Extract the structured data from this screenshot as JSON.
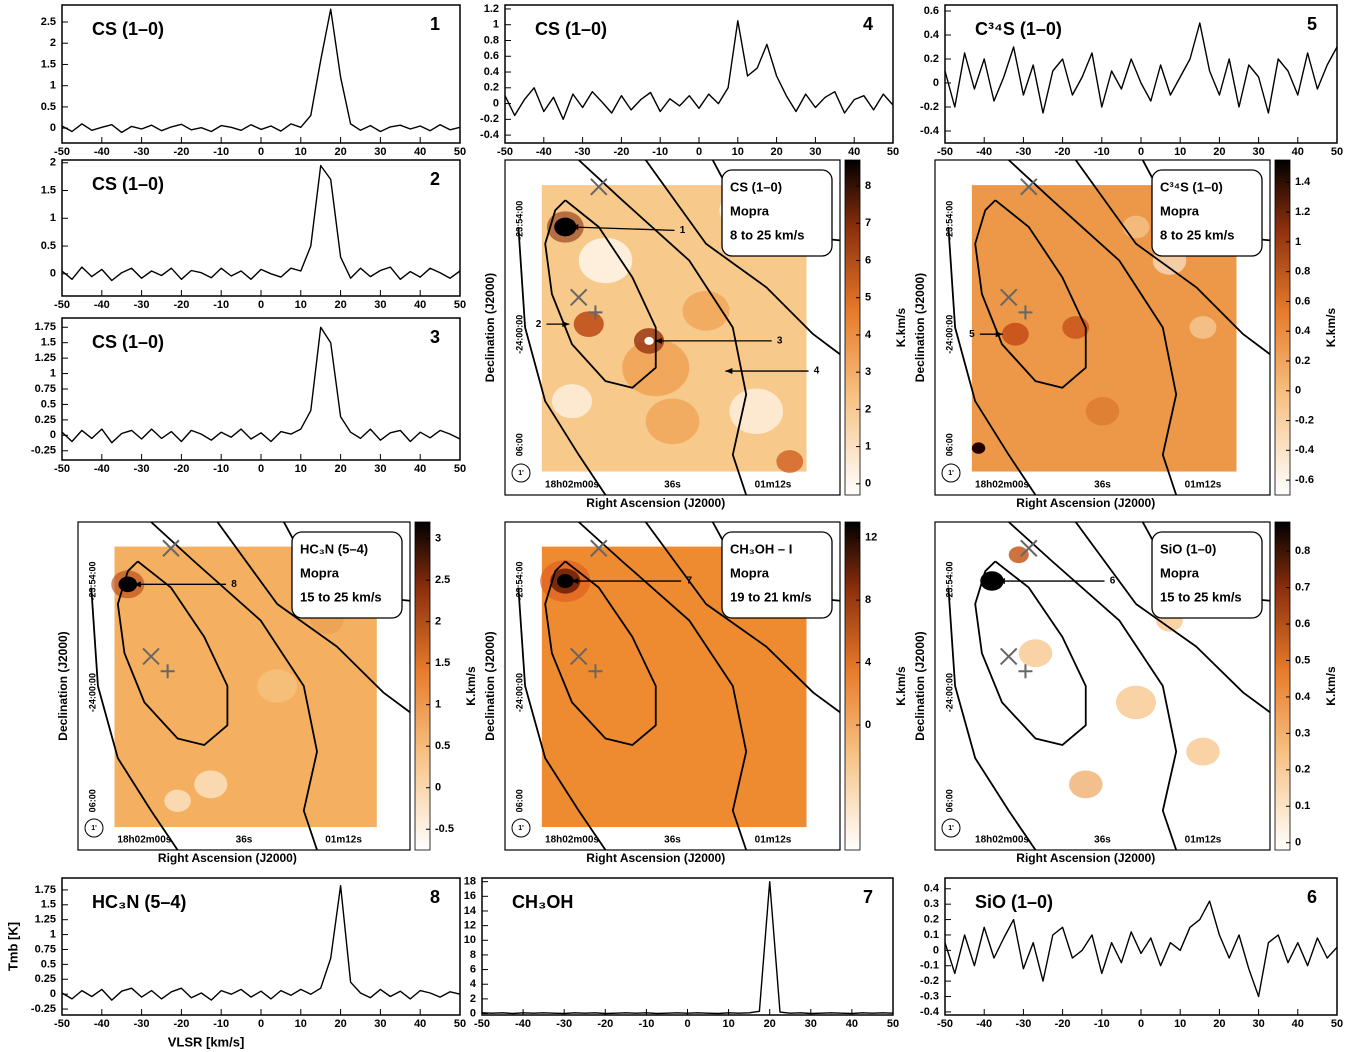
{
  "chart_data": [
    {
      "type": "line",
      "title": "CS (1–0)",
      "label": "1",
      "x": [
        -50,
        -47.5,
        -45,
        -42.5,
        -40,
        -37.5,
        -35,
        -32.5,
        -30,
        -27.5,
        -25,
        -22.5,
        -20,
        -17.5,
        -15,
        -12.5,
        -10,
        -7.5,
        -5,
        -2.5,
        0,
        2.5,
        5,
        7.5,
        10,
        12.5,
        15,
        17.5,
        20,
        22.5,
        25,
        27.5,
        30,
        32.5,
        35,
        37.5,
        40,
        42.5,
        45,
        47.5,
        50
      ],
      "values": [
        0.05,
        -0.08,
        0.1,
        -0.05,
        0.02,
        0.08,
        -0.1,
        0.04,
        -0.02,
        0.07,
        -0.06,
        0.03,
        0.09,
        -0.04,
        0.01,
        -0.08,
        0.06,
        0.02,
        -0.05,
        0.08,
        -0.03,
        0.05,
        -0.07,
        0.1,
        0.02,
        0.3,
        1.6,
        2.8,
        1.2,
        0.1,
        -0.05,
        0.06,
        -0.08,
        0.03,
        0.07,
        -0.02,
        0.05,
        -0.06,
        0.08,
        -0.04,
        0.02
      ],
      "color": "#000000",
      "xlim": [
        -50,
        50
      ],
      "xticks": [
        -50,
        -40,
        -30,
        -20,
        -10,
        0,
        10,
        20,
        30,
        40,
        50
      ],
      "ylim": [
        -0.35,
        2.9
      ],
      "yticks": [
        0,
        0.5,
        1,
        1.5,
        2,
        2.5
      ]
    },
    {
      "type": "line",
      "title": "CS (1–0)",
      "label": "4",
      "x": [
        -50,
        -47.5,
        -45,
        -42.5,
        -40,
        -37.5,
        -35,
        -32.5,
        -30,
        -27.5,
        -25,
        -22.5,
        -20,
        -17.5,
        -15,
        -12.5,
        -10,
        -7.5,
        -5,
        -2.5,
        0,
        2.5,
        5,
        7.5,
        10,
        12.5,
        15,
        17.5,
        20,
        22.5,
        25,
        27.5,
        30,
        32.5,
        35,
        37.5,
        40,
        42.5,
        45,
        47.5,
        50
      ],
      "values": [
        0.1,
        -0.15,
        0.05,
        0.2,
        -0.1,
        0.08,
        -0.2,
        0.12,
        -0.05,
        0.15,
        0.02,
        -0.12,
        0.1,
        -0.08,
        0.05,
        0.14,
        -0.1,
        0.06,
        -0.03,
        0.1,
        -0.06,
        0.12,
        0.0,
        0.2,
        1.05,
        0.35,
        0.45,
        0.75,
        0.35,
        0.1,
        -0.1,
        0.12,
        -0.05,
        0.08,
        0.15,
        -0.12,
        0.05,
        0.1,
        -0.08,
        0.12,
        -0.02
      ],
      "color": "#000000",
      "xlim": [
        -50,
        50
      ],
      "xticks": [
        -50,
        -40,
        -30,
        -20,
        -10,
        0,
        10,
        20,
        30,
        40,
        50
      ],
      "ylim": [
        -0.5,
        1.25
      ],
      "yticks": [
        -0.4,
        -0.2,
        0,
        0.2,
        0.4,
        0.6,
        0.8,
        1,
        1.2
      ]
    },
    {
      "type": "line",
      "title": "C³⁴S (1–0)",
      "label": "5",
      "x": [
        -50,
        -47.5,
        -45,
        -42.5,
        -40,
        -37.5,
        -35,
        -32.5,
        -30,
        -27.5,
        -25,
        -22.5,
        -20,
        -17.5,
        -15,
        -12.5,
        -10,
        -7.5,
        -5,
        -2.5,
        0,
        2.5,
        5,
        7.5,
        10,
        12.5,
        15,
        17.5,
        20,
        22.5,
        25,
        27.5,
        30,
        32.5,
        35,
        37.5,
        40,
        42.5,
        45,
        47.5,
        50
      ],
      "values": [
        0.1,
        -0.2,
        0.25,
        -0.05,
        0.2,
        -0.15,
        0.05,
        0.3,
        -0.1,
        0.15,
        -0.25,
        0.1,
        0.2,
        -0.1,
        0.05,
        0.25,
        -0.2,
        0.1,
        -0.05,
        0.2,
        0.0,
        -0.15,
        0.15,
        -0.1,
        0.05,
        0.2,
        0.5,
        0.1,
        -0.1,
        0.2,
        -0.2,
        0.15,
        0.05,
        -0.25,
        0.2,
        0.1,
        -0.1,
        0.25,
        -0.05,
        0.15,
        0.3
      ],
      "color": "#000000",
      "xlim": [
        -50,
        50
      ],
      "xticks": [
        -50,
        -40,
        -30,
        -20,
        -10,
        0,
        10,
        20,
        30,
        40,
        50
      ],
      "ylim": [
        -0.5,
        0.65
      ],
      "yticks": [
        -0.4,
        -0.2,
        0,
        0.2,
        0.4,
        0.6
      ]
    },
    {
      "type": "line",
      "title": "CS (1–0)",
      "label": "2",
      "x": [
        -50,
        -47.5,
        -45,
        -42.5,
        -40,
        -37.5,
        -35,
        -32.5,
        -30,
        -27.5,
        -25,
        -22.5,
        -20,
        -17.5,
        -15,
        -12.5,
        -10,
        -7.5,
        -5,
        -2.5,
        0,
        2.5,
        5,
        7.5,
        10,
        12.5,
        15,
        17.5,
        20,
        22.5,
        25,
        27.5,
        30,
        32.5,
        35,
        37.5,
        40,
        42.5,
        45,
        47.5,
        50
      ],
      "values": [
        0.05,
        -0.1,
        0.12,
        -0.05,
        0.08,
        -0.12,
        0.02,
        0.1,
        -0.08,
        0.05,
        -0.03,
        0.1,
        -0.1,
        0.06,
        0.02,
        -0.07,
        0.1,
        -0.04,
        0.05,
        -0.1,
        0.08,
        0.0,
        -0.06,
        0.1,
        0.05,
        0.5,
        1.95,
        1.7,
        0.3,
        -0.08,
        0.1,
        -0.05,
        0.06,
        0.12,
        -0.1,
        0.04,
        -0.06,
        0.1,
        0.02,
        -0.08,
        0.05
      ],
      "color": "#000000",
      "xlim": [
        -50,
        50
      ],
      "xticks": [
        -50,
        -40,
        -30,
        -20,
        -10,
        0,
        10,
        20,
        30,
        40,
        50
      ],
      "ylim": [
        -0.4,
        2.05
      ],
      "yticks": [
        0,
        0.5,
        1,
        1.5,
        2
      ]
    },
    {
      "type": "line",
      "title": "CS (1–0)",
      "label": "3",
      "x": [
        -50,
        -47.5,
        -45,
        -42.5,
        -40,
        -37.5,
        -35,
        -32.5,
        -30,
        -27.5,
        -25,
        -22.5,
        -20,
        -17.5,
        -15,
        -12.5,
        -10,
        -7.5,
        -5,
        -2.5,
        0,
        2.5,
        5,
        7.5,
        10,
        12.5,
        15,
        17.5,
        20,
        22.5,
        25,
        27.5,
        30,
        32.5,
        35,
        37.5,
        40,
        42.5,
        45,
        47.5,
        50
      ],
      "values": [
        0.05,
        -0.1,
        0.08,
        -0.05,
        0.1,
        -0.12,
        0.03,
        0.08,
        -0.06,
        0.1,
        -0.05,
        0.06,
        -0.1,
        0.08,
        0.02,
        -0.08,
        0.05,
        -0.03,
        0.1,
        -0.06,
        0.04,
        -0.1,
        0.06,
        0.02,
        0.1,
        0.4,
        1.75,
        1.5,
        0.3,
        0.05,
        -0.05,
        0.1,
        -0.08,
        0.04,
        0.08,
        -0.1,
        0.05,
        -0.04,
        0.08,
        0.02,
        -0.06
      ],
      "color": "#000000",
      "xlim": [
        -50,
        50
      ],
      "xticks": [
        -50,
        -40,
        -30,
        -20,
        -10,
        0,
        10,
        20,
        30,
        40,
        50
      ],
      "ylim": [
        -0.4,
        1.9
      ],
      "yticks": [
        -0.25,
        0,
        0.25,
        0.5,
        0.75,
        1,
        1.25,
        1.5,
        1.75
      ]
    },
    {
      "type": "line",
      "title": "HC₃N (5–4)",
      "label": "8",
      "xlabel": "VLSR [km/s]",
      "ylabel": "Tmb [K]",
      "x": [
        -50,
        -47.5,
        -45,
        -42.5,
        -40,
        -37.5,
        -35,
        -32.5,
        -30,
        -27.5,
        -25,
        -22.5,
        -20,
        -17.5,
        -15,
        -12.5,
        -10,
        -7.5,
        -5,
        -2.5,
        0,
        2.5,
        5,
        7.5,
        10,
        12.5,
        15,
        17.5,
        20,
        22.5,
        25,
        27.5,
        30,
        32.5,
        35,
        37.5,
        40,
        42.5,
        45,
        47.5,
        50
      ],
      "values": [
        0.02,
        -0.08,
        0.06,
        -0.04,
        0.08,
        -0.1,
        0.05,
        0.1,
        -0.05,
        0.06,
        -0.08,
        0.04,
        0.1,
        -0.06,
        0.02,
        -0.1,
        0.06,
        0.0,
        0.08,
        -0.05,
        0.05,
        -0.08,
        0.06,
        -0.02,
        0.08,
        0.0,
        0.1,
        0.6,
        1.82,
        0.2,
        0.02,
        -0.06,
        0.08,
        -0.04,
        0.05,
        -0.08,
        0.06,
        0.02,
        -0.05,
        0.04,
        0.0
      ],
      "color": "#000000",
      "xlim": [
        -50,
        50
      ],
      "xticks": [
        -50,
        -40,
        -30,
        -20,
        -10,
        0,
        10,
        20,
        30,
        40,
        50
      ],
      "ylim": [
        -0.35,
        1.95
      ],
      "yticks": [
        -0.25,
        0,
        0.25,
        0.5,
        0.75,
        1,
        1.25,
        1.5,
        1.75
      ]
    },
    {
      "type": "line",
      "title": "CH₃OH",
      "label": "7",
      "x": [
        -50,
        -47.5,
        -45,
        -42.5,
        -40,
        -37.5,
        -35,
        -32.5,
        -30,
        -27.5,
        -25,
        -22.5,
        -20,
        -17.5,
        -15,
        -12.5,
        -10,
        -7.5,
        -5,
        -2.5,
        0,
        2.5,
        5,
        7.5,
        10,
        12.5,
        15,
        17.5,
        20,
        22.5,
        25,
        27.5,
        30,
        32.5,
        35,
        37.5,
        40,
        42.5,
        45,
        47.5,
        50
      ],
      "values": [
        0.1,
        0.05,
        0.1,
        0.0,
        0.1,
        0.05,
        0.1,
        0.05,
        0.0,
        0.1,
        0.05,
        0.1,
        0.0,
        0.05,
        0.1,
        0.05,
        0.1,
        0.0,
        0.05,
        0.1,
        0.05,
        0.1,
        0.05,
        0.0,
        0.1,
        0.05,
        0.1,
        0.3,
        18.0,
        0.2,
        0.05,
        0.1,
        0.0,
        0.05,
        0.1,
        0.05,
        0.0,
        0.1,
        0.05,
        0.1,
        0.05
      ],
      "color": "#000000",
      "xlim": [
        -50,
        50
      ],
      "xticks": [
        -50,
        -40,
        -30,
        -20,
        -10,
        0,
        10,
        20,
        30,
        40,
        50
      ],
      "ylim": [
        -0.2,
        18.5
      ],
      "yticks": [
        0,
        2,
        4,
        6,
        8,
        10,
        12,
        14,
        16,
        18
      ]
    },
    {
      "type": "line",
      "title": "SiO (1–0)",
      "label": "6",
      "x": [
        -50,
        -47.5,
        -45,
        -42.5,
        -40,
        -37.5,
        -35,
        -32.5,
        -30,
        -27.5,
        -25,
        -22.5,
        -20,
        -17.5,
        -15,
        -12.5,
        -10,
        -7.5,
        -5,
        -2.5,
        0,
        2.5,
        5,
        7.5,
        10,
        12.5,
        15,
        17.5,
        20,
        22.5,
        25,
        27.5,
        30,
        32.5,
        35,
        37.5,
        40,
        42.5,
        45,
        47.5,
        50
      ],
      "values": [
        0.05,
        -0.15,
        0.1,
        -0.1,
        0.15,
        -0.05,
        0.08,
        0.2,
        -0.12,
        0.05,
        -0.2,
        0.1,
        0.15,
        -0.05,
        0.0,
        0.1,
        -0.15,
        0.05,
        -0.08,
        0.12,
        -0.02,
        0.08,
        -0.1,
        0.05,
        0.0,
        0.15,
        0.2,
        0.32,
        0.1,
        -0.05,
        0.1,
        -0.12,
        -0.3,
        0.05,
        0.1,
        -0.08,
        0.05,
        -0.1,
        0.08,
        -0.05,
        0.02
      ],
      "color": "#000000",
      "xlim": [
        -50,
        50
      ],
      "xticks": [
        -50,
        -40,
        -30,
        -20,
        -10,
        0,
        10,
        20,
        30,
        40,
        50
      ],
      "ylim": [
        -0.42,
        0.47
      ],
      "yticks": [
        -0.4,
        -0.3,
        -0.2,
        -0.1,
        0,
        0.1,
        0.2,
        0.3,
        0.4
      ]
    },
    {
      "type": "map",
      "title": "CS (1–0)",
      "telescope": "Mopra",
      "velocity_range": "8 to 25 km/s",
      "color": "#f7c98a",
      "xlabel": "Right Ascension (J2000)",
      "ylabel": "Declination (J2000)",
      "xtick_labels": [
        "18h02m00s",
        "36s",
        "01m12s"
      ],
      "ytick_labels": [
        "-23:54:00",
        "-24:00:00",
        "06:00"
      ],
      "beam": "1'",
      "markers": [
        "1",
        "2",
        "3",
        "4"
      ],
      "colorbar_label": "K.km/s",
      "clim": [
        -0.3,
        8.7
      ],
      "cticks": [
        0,
        1,
        2,
        3,
        4,
        5,
        6,
        7,
        8
      ]
    },
    {
      "type": "map",
      "title": "C³⁴S (1–0)",
      "telescope": "Mopra",
      "velocity_range": "8 to 25 km/s",
      "color": "#ec9848",
      "xlabel": "Right Ascension (J2000)",
      "ylabel": "Declination (J2000)",
      "xtick_labels": [
        "18h02m00s",
        "36s",
        "01m12s"
      ],
      "ytick_labels": [
        "-23:54:00",
        "-24:00:00",
        "06:00"
      ],
      "beam": "1'",
      "markers": [
        "5"
      ],
      "colorbar_label": "K.km/s",
      "clim": [
        -0.7,
        1.55
      ],
      "cticks": [
        -0.6,
        -0.4,
        -0.2,
        0,
        0.2,
        0.4,
        0.6,
        0.8,
        1,
        1.2,
        1.4
      ]
    },
    {
      "type": "map",
      "title": "HC₃N (5–4)",
      "telescope": "Mopra",
      "velocity_range": "15 to 25 km/s",
      "color": "#f4b060",
      "xlabel": "Right Ascension (J2000)",
      "ylabel": "Declination (J2000)",
      "xtick_labels": [
        "18h02m00s",
        "36s",
        "01m12s"
      ],
      "ytick_labels": [
        "-23:54:00",
        "-24:00:00",
        "06:00"
      ],
      "beam": "1'",
      "markers": [
        "8"
      ],
      "colorbar_label": "K.km/s",
      "clim": [
        -0.75,
        3.2
      ],
      "cticks": [
        -0.5,
        0,
        0.5,
        1,
        1.5,
        2,
        2.5,
        3
      ]
    },
    {
      "type": "map",
      "title": "CH₃OH – I",
      "telescope": "Mopra",
      "velocity_range": "19 to 21 km/s",
      "color": "#ee8a30",
      "xlabel": "Right Ascension (J2000)",
      "ylabel": "Declination (J2000)",
      "xtick_labels": [
        "18h02m00s",
        "36s",
        "01m12s"
      ],
      "ytick_labels": [
        "-23:54:00",
        "-24:00:00",
        "06:00"
      ],
      "beam": "1'",
      "markers": [
        "7"
      ],
      "colorbar_label": "K.km/s",
      "clim": [
        -8,
        13
      ],
      "cticks": [
        0,
        4,
        8,
        12
      ]
    },
    {
      "type": "map",
      "title": "SiO (1–0)",
      "telescope": "Mopra",
      "velocity_range": "15 to 25 km/s",
      "color": "#ffffff",
      "xlabel": "Right Ascension (J2000)",
      "ylabel": "Declination (J2000)",
      "xtick_labels": [
        "18h02m00s",
        "36s",
        "01m12s"
      ],
      "ytick_labels": [
        "-23:54:00",
        "-24:00:00",
        "06:00"
      ],
      "beam": "1'",
      "markers": [
        "6"
      ],
      "colorbar_label": "K.km/s",
      "clim": [
        -0.02,
        0.88
      ],
      "cticks": [
        0,
        0.1,
        0.2,
        0.3,
        0.4,
        0.5,
        0.6,
        0.7,
        0.8
      ]
    }
  ]
}
